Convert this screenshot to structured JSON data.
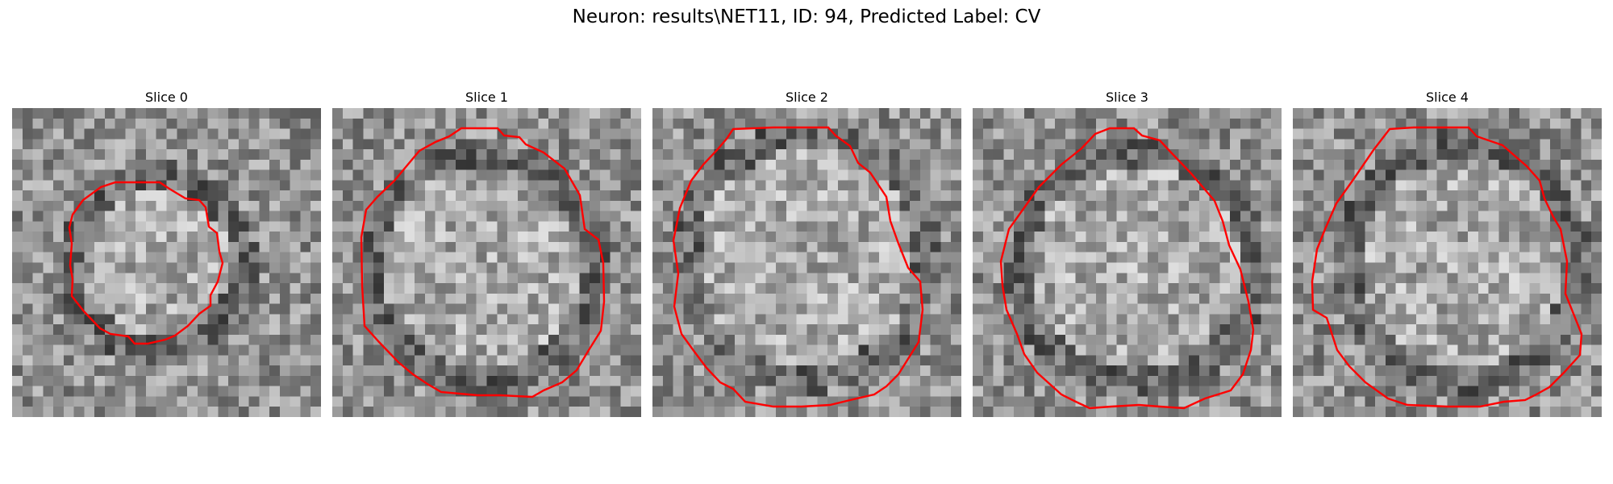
{
  "figure": {
    "title": "Neuron: results\\NET11, ID: 94, Predicted Label: CV"
  },
  "panels": [
    {
      "title": "Slice 0"
    },
    {
      "title": "Slice 1"
    },
    {
      "title": "Slice 2"
    },
    {
      "title": "Slice 3"
    },
    {
      "title": "Slice 4"
    }
  ],
  "colors": {
    "contour": "#ff0000",
    "colormap": "gray"
  }
}
